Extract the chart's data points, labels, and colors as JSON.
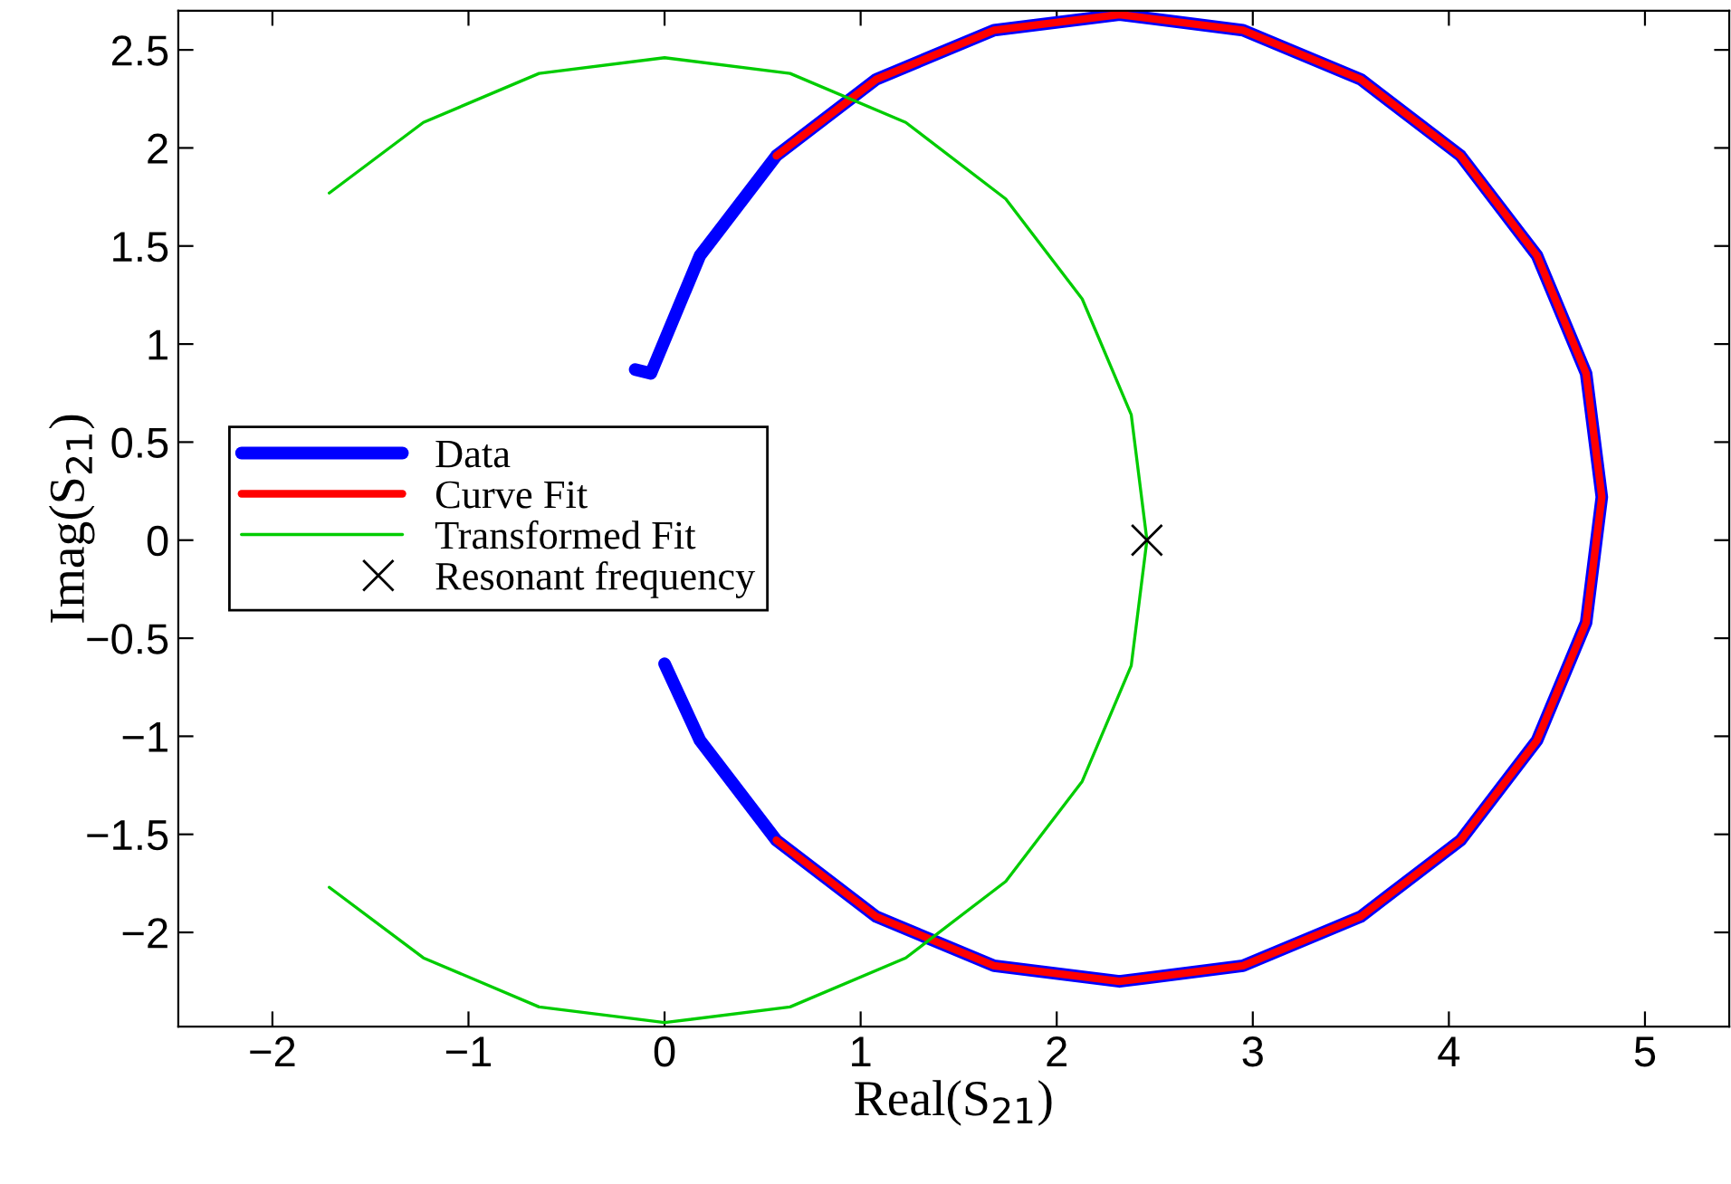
{
  "chart_data": {
    "type": "line",
    "xlabel": "Real(S$_{21}$)",
    "ylabel": "Imag(S$_{21}$)",
    "xlim": [
      -2.48,
      5.43
    ],
    "ylim": [
      -2.48,
      2.7
    ],
    "xticks": [
      -2,
      -1,
      0,
      1,
      2,
      3,
      4,
      5
    ],
    "yticks": [
      -2,
      -1.5,
      -1,
      -0.5,
      0,
      0.5,
      1,
      1.5,
      2,
      2.5
    ],
    "grid": false,
    "legend": "center left",
    "series": [
      {
        "name": "Data",
        "color": "#0000ff",
        "x": [
          -0.15,
          -0.07,
          0.18,
          0.57,
          1.08,
          1.68,
          2.32,
          2.95,
          3.55,
          4.06,
          4.45,
          4.7,
          4.78,
          4.7,
          4.45,
          4.06,
          3.55,
          2.95,
          2.32,
          1.68,
          1.08,
          0.57,
          0.18,
          0.0
        ],
        "values": [
          0.87,
          0.85,
          1.45,
          1.96,
          2.35,
          2.6,
          2.68,
          2.6,
          2.35,
          1.96,
          1.45,
          0.85,
          0.22,
          -0.42,
          -1.02,
          -1.53,
          -1.92,
          -2.17,
          -2.25,
          -2.17,
          -1.92,
          -1.53,
          -1.02,
          -0.63
        ]
      },
      {
        "name": "Curve Fit",
        "color": "#ff0000",
        "x": [
          0.57,
          1.08,
          1.68,
          2.32,
          2.95,
          3.55,
          4.06,
          4.45,
          4.7,
          4.78,
          4.7,
          4.45,
          4.06,
          3.55,
          2.95,
          2.32,
          1.68,
          1.08,
          0.57
        ],
        "values": [
          1.96,
          2.35,
          2.6,
          2.68,
          2.6,
          2.35,
          1.96,
          1.45,
          0.85,
          0.22,
          -0.42,
          -1.02,
          -1.53,
          -1.92,
          -2.17,
          -2.25,
          -2.17,
          -1.92,
          -1.53
        ]
      },
      {
        "name": "Transformed Fit",
        "color": "#00cc00",
        "x": [
          -1.71,
          -1.23,
          -0.64,
          0,
          0.64,
          1.23,
          1.74,
          2.13,
          2.38,
          2.46,
          2.38,
          2.13,
          1.74,
          1.23,
          0.64,
          0,
          -0.64,
          -1.23,
          -1.71
        ],
        "values": [
          1.77,
          2.13,
          2.38,
          2.46,
          2.38,
          2.13,
          1.74,
          1.23,
          0.64,
          0,
          -0.64,
          -1.23,
          -1.74,
          -2.13,
          -2.38,
          -2.46,
          -2.38,
          -2.13,
          -1.77
        ]
      },
      {
        "name": "Resonant frequency",
        "type": "scatter",
        "marker": "cross",
        "color": "#000000",
        "x": [
          2.46
        ],
        "values": [
          0
        ]
      }
    ]
  }
}
